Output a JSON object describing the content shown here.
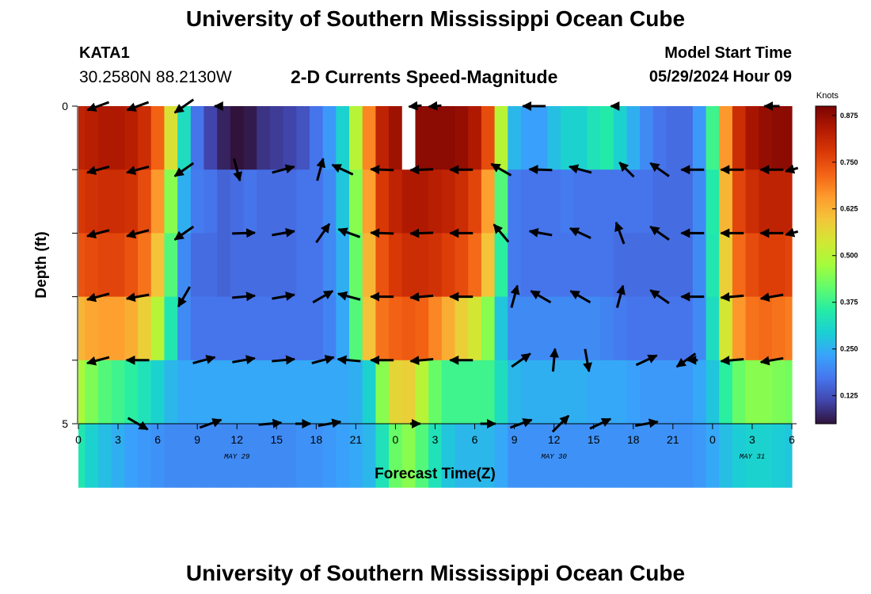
{
  "header": {
    "title_top": "University of Southern Mississippi Ocean Cube",
    "title_bottom": "University of Southern Mississippi Ocean Cube",
    "station_id": "KATA1",
    "station_coords": "30.2580N  88.2130W",
    "chart_title": "2-D Currents Speed-Magnitude",
    "model_label": "Model Start Time",
    "model_time": "05/29/2024 Hour 09"
  },
  "colors": {
    "arrow": "#000000",
    "gap": "#ffffff",
    "colormap": [
      "#30123b",
      "#4145ab",
      "#4675ed",
      "#39a2fc",
      "#1bcfd4",
      "#24eca6",
      "#61fc6c",
      "#a4fc3b",
      "#d1e834",
      "#f3c63a",
      "#fe9b2d",
      "#f36315",
      "#d93806",
      "#b11901",
      "#7a0403"
    ]
  },
  "chart_data": {
    "type": "heatmap",
    "title": "2-D Currents Speed-Magnitude",
    "xlabel": "Forecast Time(Z)",
    "ylabel": "Depth (ft)",
    "x_hours": [
      0,
      1,
      2,
      3,
      4,
      5,
      6,
      7,
      8,
      9,
      10,
      11,
      12,
      13,
      14,
      15,
      16,
      17,
      18,
      19,
      20,
      21,
      22,
      23,
      24,
      25,
      26,
      27,
      28,
      29,
      30,
      31,
      32,
      33,
      34,
      35,
      36,
      37,
      38,
      39,
      40,
      41,
      42,
      43,
      44,
      45,
      46,
      47,
      48,
      49,
      50,
      51,
      52,
      53,
      54
    ],
    "xlim": [
      0,
      54
    ],
    "x_ticks": [
      0,
      3,
      6,
      9,
      12,
      15,
      18,
      21,
      24,
      27,
      30,
      33,
      36,
      39,
      42,
      45,
      48,
      51,
      54
    ],
    "x_tick_labels": [
      "0",
      "3",
      "6",
      "9",
      "12",
      "15",
      "18",
      "21",
      "0",
      "3",
      "6",
      "9",
      "12",
      "15",
      "18",
      "21",
      "0",
      "3",
      "6"
    ],
    "date_labels": [
      {
        "label": "MAY 29",
        "hour": 12
      },
      {
        "label": "MAY 30",
        "hour": 36
      },
      {
        "label": "MAY 31",
        "hour": 51
      }
    ],
    "depth_levels": [
      0,
      1,
      2,
      3,
      4,
      5
    ],
    "y_ticks": [
      0,
      1,
      2,
      3,
      4,
      5
    ],
    "y_tick_labels": [
      "0",
      "",
      "",
      "",
      "",
      "5"
    ],
    "ylim": [
      0,
      5
    ],
    "colorbar": {
      "title": "Knots",
      "ticks": [
        0.125,
        0.25,
        0.375,
        0.5,
        0.625,
        0.75,
        0.875
      ],
      "tick_labels": [
        "0.125",
        "0.250",
        "0.375",
        "0.500",
        "0.625",
        "0.750",
        "0.875"
      ],
      "range": [
        0.05,
        0.9
      ]
    },
    "missing": [
      {
        "hour": 25,
        "band": 0
      }
    ],
    "speed_keyframes": {
      "hours": [
        0,
        1,
        2,
        3,
        4,
        5,
        6,
        7,
        8,
        9,
        10,
        11,
        12,
        13,
        14,
        15,
        16,
        17,
        18,
        19,
        20,
        21,
        22,
        23,
        24,
        25,
        26,
        27,
        28,
        29,
        30,
        31,
        32,
        33,
        34,
        35,
        36,
        37,
        38,
        39,
        40,
        41,
        42,
        43,
        44,
        45,
        46,
        47,
        48,
        49,
        50,
        51,
        52,
        53,
        54
      ],
      "bands": [
        [
          0.82,
          0.83,
          0.84,
          0.84,
          0.83,
          0.8,
          0.72,
          0.55,
          0.32,
          0.17,
          0.11,
          0.07,
          0.05,
          0.06,
          0.09,
          0.1,
          0.11,
          0.13,
          0.17,
          0.22,
          0.3,
          0.5,
          0.68,
          0.82,
          0.86,
          0.87,
          0.88,
          0.88,
          0.88,
          0.87,
          0.84,
          0.75,
          0.5,
          0.26,
          0.23,
          0.23,
          0.27,
          0.3,
          0.3,
          0.33,
          0.35,
          0.3,
          0.25,
          0.2,
          0.17,
          0.16,
          0.16,
          0.22,
          0.38,
          0.66,
          0.8,
          0.85,
          0.87,
          0.88,
          0.88
        ],
        [
          0.78,
          0.79,
          0.8,
          0.8,
          0.79,
          0.75,
          0.66,
          0.45,
          0.25,
          0.18,
          0.17,
          0.15,
          0.16,
          0.17,
          0.16,
          0.16,
          0.16,
          0.17,
          0.17,
          0.2,
          0.28,
          0.45,
          0.65,
          0.78,
          0.82,
          0.84,
          0.84,
          0.83,
          0.82,
          0.8,
          0.76,
          0.65,
          0.4,
          0.18,
          0.17,
          0.17,
          0.17,
          0.18,
          0.17,
          0.17,
          0.17,
          0.17,
          0.17,
          0.17,
          0.16,
          0.16,
          0.16,
          0.2,
          0.35,
          0.62,
          0.76,
          0.8,
          0.82,
          0.82,
          0.82
        ],
        [
          0.74,
          0.75,
          0.76,
          0.76,
          0.74,
          0.7,
          0.6,
          0.4,
          0.2,
          0.16,
          0.16,
          0.15,
          0.16,
          0.16,
          0.16,
          0.16,
          0.16,
          0.17,
          0.17,
          0.2,
          0.25,
          0.42,
          0.62,
          0.74,
          0.78,
          0.8,
          0.8,
          0.79,
          0.77,
          0.75,
          0.71,
          0.6,
          0.36,
          0.18,
          0.17,
          0.17,
          0.17,
          0.17,
          0.17,
          0.17,
          0.17,
          0.16,
          0.16,
          0.16,
          0.16,
          0.16,
          0.16,
          0.2,
          0.34,
          0.58,
          0.71,
          0.75,
          0.77,
          0.77,
          0.76
        ],
        [
          0.62,
          0.64,
          0.65,
          0.65,
          0.63,
          0.58,
          0.5,
          0.34,
          0.2,
          0.17,
          0.17,
          0.17,
          0.17,
          0.17,
          0.17,
          0.17,
          0.17,
          0.17,
          0.17,
          0.19,
          0.24,
          0.4,
          0.6,
          0.7,
          0.72,
          0.73,
          0.72,
          0.68,
          0.63,
          0.58,
          0.54,
          0.45,
          0.28,
          0.2,
          0.2,
          0.2,
          0.2,
          0.2,
          0.2,
          0.2,
          0.19,
          0.18,
          0.17,
          0.17,
          0.17,
          0.17,
          0.17,
          0.2,
          0.32,
          0.54,
          0.66,
          0.7,
          0.71,
          0.7,
          0.69
        ],
        [
          0.48,
          0.44,
          0.4,
          0.38,
          0.36,
          0.33,
          0.3,
          0.26,
          0.24,
          0.24,
          0.24,
          0.24,
          0.24,
          0.24,
          0.24,
          0.24,
          0.24,
          0.24,
          0.24,
          0.24,
          0.24,
          0.25,
          0.3,
          0.45,
          0.57,
          0.58,
          0.5,
          0.42,
          0.38,
          0.38,
          0.38,
          0.38,
          0.32,
          0.26,
          0.25,
          0.25,
          0.25,
          0.25,
          0.25,
          0.24,
          0.24,
          0.24,
          0.23,
          0.22,
          0.22,
          0.22,
          0.22,
          0.24,
          0.28,
          0.36,
          0.42,
          0.45,
          0.45,
          0.44,
          0.43
        ],
        [
          0.34,
          0.3,
          0.27,
          0.25,
          0.23,
          0.22,
          0.21,
          0.2,
          0.2,
          0.2,
          0.2,
          0.2,
          0.2,
          0.2,
          0.2,
          0.2,
          0.2,
          0.21,
          0.21,
          0.22,
          0.23,
          0.24,
          0.26,
          0.33,
          0.42,
          0.45,
          0.4,
          0.33,
          0.28,
          0.26,
          0.26,
          0.26,
          0.24,
          0.21,
          0.21,
          0.21,
          0.21,
          0.21,
          0.21,
          0.21,
          0.21,
          0.21,
          0.21,
          0.21,
          0.21,
          0.21,
          0.21,
          0.22,
          0.24,
          0.27,
          0.29,
          0.3,
          0.3,
          0.29,
          0.28
        ]
      ]
    },
    "vectors": [
      {
        "depth": 0,
        "rows": [
          {
            "h": 1.5,
            "dir": 250,
            "len": 0.9
          },
          {
            "h": 4.5,
            "dir": 250,
            "len": 0.9
          },
          {
            "h": 8.0,
            "dir": 235,
            "len": 0.9
          },
          {
            "h": 10.5,
            "dir": 270,
            "len": 0.2
          },
          {
            "h": 25.5,
            "dir": 265,
            "len": 0.5
          },
          {
            "h": 27.0,
            "dir": 265,
            "len": 0.5
          },
          {
            "h": 34.5,
            "dir": 270,
            "len": 0.9
          },
          {
            "h": 40.5,
            "dir": 270,
            "len": 0.2
          },
          {
            "h": 52.5,
            "dir": 270,
            "len": 0.6
          }
        ]
      },
      {
        "depth": 1,
        "rows": [
          {
            "h": 1.5,
            "dir": 255,
            "len": 0.9
          },
          {
            "h": 4.5,
            "dir": 255,
            "len": 0.9
          },
          {
            "h": 8.0,
            "dir": 235,
            "len": 0.9
          },
          {
            "h": 12.0,
            "dir": 165,
            "len": 0.9
          },
          {
            "h": 15.5,
            "dir": 75,
            "len": 0.9
          },
          {
            "h": 18.3,
            "dir": 15,
            "len": 0.9
          },
          {
            "h": 20.0,
            "dir": 295,
            "len": 0.9
          },
          {
            "h": 23.0,
            "dir": 272,
            "len": 0.9
          },
          {
            "h": 26.0,
            "dir": 268,
            "len": 0.9
          },
          {
            "h": 29.0,
            "dir": 270,
            "len": 0.9
          },
          {
            "h": 32.0,
            "dir": 300,
            "len": 0.9
          },
          {
            "h": 35.0,
            "dir": 272,
            "len": 0.9
          },
          {
            "h": 38.0,
            "dir": 285,
            "len": 0.9
          },
          {
            "h": 41.5,
            "dir": 315,
            "len": 0.8
          },
          {
            "h": 44.0,
            "dir": 305,
            "len": 0.9
          },
          {
            "h": 46.5,
            "dir": 270,
            "len": 0.9
          },
          {
            "h": 49.5,
            "dir": 270,
            "len": 0.9
          },
          {
            "h": 52.5,
            "dir": 270,
            "len": 0.9
          },
          {
            "h": 54.0,
            "dir": 255,
            "len": 0.5
          }
        ]
      },
      {
        "depth": 2,
        "rows": [
          {
            "h": 1.5,
            "dir": 255,
            "len": 0.9
          },
          {
            "h": 4.5,
            "dir": 255,
            "len": 0.9
          },
          {
            "h": 8.0,
            "dir": 235,
            "len": 0.9
          },
          {
            "h": 12.5,
            "dir": 88,
            "len": 0.9
          },
          {
            "h": 15.5,
            "dir": 80,
            "len": 0.9
          },
          {
            "h": 18.5,
            "dir": 35,
            "len": 0.9
          },
          {
            "h": 20.5,
            "dir": 290,
            "len": 0.9
          },
          {
            "h": 23.0,
            "dir": 272,
            "len": 0.9
          },
          {
            "h": 26.0,
            "dir": 268,
            "len": 0.9
          },
          {
            "h": 29.0,
            "dir": 270,
            "len": 0.9
          },
          {
            "h": 32.0,
            "dir": 320,
            "len": 0.9
          },
          {
            "h": 35.0,
            "dir": 280,
            "len": 0.9
          },
          {
            "h": 38.0,
            "dir": 295,
            "len": 0.9
          },
          {
            "h": 41.0,
            "dir": 340,
            "len": 0.9
          },
          {
            "h": 44.0,
            "dir": 305,
            "len": 0.9
          },
          {
            "h": 46.5,
            "dir": 270,
            "len": 0.9
          },
          {
            "h": 49.5,
            "dir": 270,
            "len": 0.9
          },
          {
            "h": 52.5,
            "dir": 270,
            "len": 0.9
          },
          {
            "h": 54.0,
            "dir": 255,
            "len": 0.5
          }
        ]
      },
      {
        "depth": 3,
        "rows": [
          {
            "h": 1.5,
            "dir": 255,
            "len": 0.9
          },
          {
            "h": 4.5,
            "dir": 260,
            "len": 0.9
          },
          {
            "h": 8.0,
            "dir": 210,
            "len": 0.9
          },
          {
            "h": 12.5,
            "dir": 85,
            "len": 0.9
          },
          {
            "h": 15.5,
            "dir": 80,
            "len": 0.9
          },
          {
            "h": 18.5,
            "dir": 60,
            "len": 0.9
          },
          {
            "h": 20.5,
            "dir": 285,
            "len": 0.9
          },
          {
            "h": 23.0,
            "dir": 270,
            "len": 0.9
          },
          {
            "h": 26.0,
            "dir": 265,
            "len": 0.9
          },
          {
            "h": 29.0,
            "dir": 270,
            "len": 0.9
          },
          {
            "h": 33.0,
            "dir": 15,
            "len": 0.9
          },
          {
            "h": 35.0,
            "dir": 300,
            "len": 0.9
          },
          {
            "h": 38.0,
            "dir": 300,
            "len": 0.9
          },
          {
            "h": 41.0,
            "dir": 15,
            "len": 0.9
          },
          {
            "h": 44.0,
            "dir": 305,
            "len": 0.9
          },
          {
            "h": 46.5,
            "dir": 270,
            "len": 0.9
          },
          {
            "h": 49.5,
            "dir": 265,
            "len": 0.9
          },
          {
            "h": 52.5,
            "dir": 260,
            "len": 0.9
          }
        ]
      },
      {
        "depth": 4,
        "rows": [
          {
            "h": 1.5,
            "dir": 255,
            "len": 0.9
          },
          {
            "h": 4.5,
            "dir": 270,
            "len": 0.9
          },
          {
            "h": 9.5,
            "dir": 75,
            "len": 0.9
          },
          {
            "h": 12.5,
            "dir": 80,
            "len": 0.9
          },
          {
            "h": 15.5,
            "dir": 85,
            "len": 0.9
          },
          {
            "h": 18.5,
            "dir": 75,
            "len": 0.9
          },
          {
            "h": 20.5,
            "dir": 275,
            "len": 0.9
          },
          {
            "h": 23.0,
            "dir": 270,
            "len": 0.9
          },
          {
            "h": 26.0,
            "dir": 265,
            "len": 0.9
          },
          {
            "h": 29.0,
            "dir": 270,
            "len": 0.9
          },
          {
            "h": 33.5,
            "dir": 55,
            "len": 0.9
          },
          {
            "h": 36.0,
            "dir": 5,
            "len": 0.9
          },
          {
            "h": 38.5,
            "dir": 170,
            "len": 0.9
          },
          {
            "h": 43.0,
            "dir": 65,
            "len": 0.9
          },
          {
            "h": 46.0,
            "dir": 235,
            "len": 0.9
          },
          {
            "h": 46.5,
            "dir": 270,
            "len": 0.4
          },
          {
            "h": 49.5,
            "dir": 265,
            "len": 0.9
          },
          {
            "h": 52.5,
            "dir": 260,
            "len": 0.9
          }
        ]
      },
      {
        "depth": 5,
        "rows": [
          {
            "h": 4.5,
            "dir": 120,
            "len": 0.9
          },
          {
            "h": 10.0,
            "dir": 70,
            "len": 0.9
          },
          {
            "h": 14.5,
            "dir": 85,
            "len": 0.9
          },
          {
            "h": 17.0,
            "dir": 90,
            "len": 0.6
          },
          {
            "h": 19.0,
            "dir": 80,
            "len": 0.9
          },
          {
            "h": 25.5,
            "dir": 90,
            "len": 0.4
          },
          {
            "h": 31.0,
            "dir": 90,
            "len": 0.6
          },
          {
            "h": 33.5,
            "dir": 70,
            "len": 0.9
          },
          {
            "h": 36.5,
            "dir": 45,
            "len": 0.9
          },
          {
            "h": 39.5,
            "dir": 65,
            "len": 0.9
          },
          {
            "h": 43.0,
            "dir": 80,
            "len": 0.9
          }
        ]
      }
    ]
  }
}
